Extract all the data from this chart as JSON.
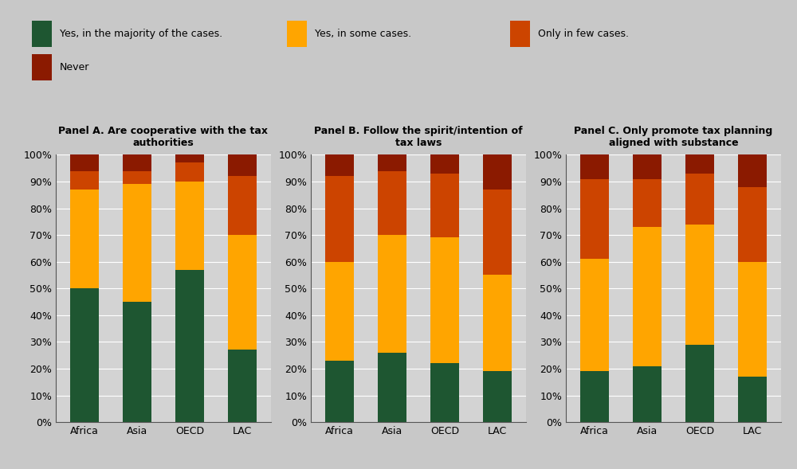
{
  "panels": [
    {
      "title": "Panel A. Are cooperative with the tax\nauthorities",
      "categories": [
        "Africa",
        "Asia",
        "OECD",
        "LAC"
      ],
      "green": [
        50,
        45,
        57,
        27
      ],
      "orange": [
        37,
        44,
        33,
        43
      ],
      "red": [
        7,
        5,
        7,
        22
      ],
      "darkred": [
        6,
        6,
        3,
        8
      ]
    },
    {
      "title": "Panel B. Follow the spirit/intention of\ntax laws",
      "categories": [
        "Africa",
        "Asia",
        "OECD",
        "LAC"
      ],
      "green": [
        23,
        26,
        22,
        19
      ],
      "orange": [
        37,
        44,
        47,
        36
      ],
      "red": [
        32,
        24,
        24,
        32
      ],
      "darkred": [
        8,
        6,
        7,
        13
      ]
    },
    {
      "title": "Panel C. Only promote tax planning\naligned with substance",
      "categories": [
        "Africa",
        "Asia",
        "OECD",
        "LAC"
      ],
      "green": [
        19,
        21,
        29,
        17
      ],
      "orange": [
        42,
        52,
        45,
        43
      ],
      "red": [
        30,
        18,
        19,
        28
      ],
      "darkred": [
        9,
        9,
        7,
        12
      ]
    }
  ],
  "legend_labels": [
    "Yes, in the majority of the cases.",
    "Yes, in some cases.",
    "Only in few cases.",
    "Never"
  ],
  "colors": {
    "green": "#1e5631",
    "orange": "#ffa500",
    "red": "#cc4400",
    "darkred": "#8b1a00"
  },
  "figure_bg": "#c8c8c8",
  "plot_bg": "#d3d3d3",
  "ylim": [
    0,
    100
  ],
  "yticks": [
    0,
    10,
    20,
    30,
    40,
    50,
    60,
    70,
    80,
    90,
    100
  ]
}
